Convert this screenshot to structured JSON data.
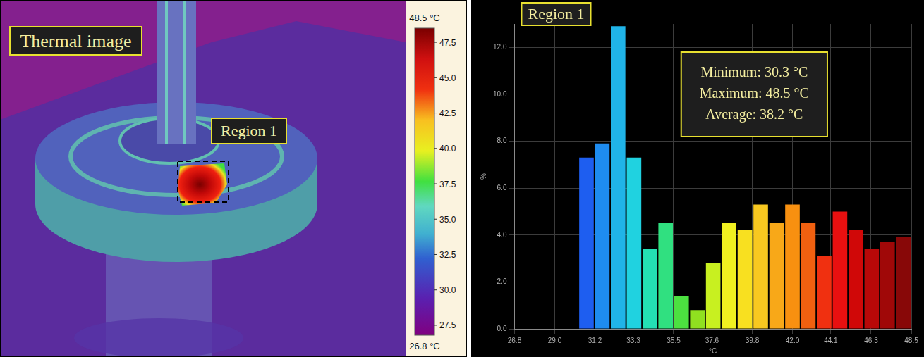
{
  "thermal_image": {
    "label": "Thermal image",
    "region_label": "Region 1",
    "colorbar": {
      "range": [
        26.8,
        48.5
      ],
      "min_label": "26.8 °C",
      "max_label": "48.5 °C",
      "ticks": [
        27.5,
        {
          "value": 30,
          "label": "30.0"
        },
        32.5,
        {
          "value": 35,
          "label": "35.0"
        },
        37.5,
        {
          "value": 40,
          "label": "40.0"
        },
        42.5,
        {
          "value": 45,
          "label": "45.0"
        },
        47.5
      ]
    }
  },
  "chart_data": {
    "type": "histogram",
    "title": "Region 1",
    "annotations": [
      "Minimum: 30.3 °C",
      "Maximum: 48.5 °C",
      "Average: 38.2 °C"
    ],
    "x_label": "°C",
    "y_label": "%",
    "bins": [
      30.3,
      31.17,
      32.03,
      32.9,
      33.77,
      34.63,
      35.5,
      36.37,
      37.23,
      38.1,
      38.97,
      39.83,
      40.7,
      41.57,
      42.43,
      43.3,
      44.17,
      45.03,
      45.9,
      46.77,
      47.63,
      48.5
    ],
    "values": [
      7.3,
      7.9,
      12.9,
      7.3,
      3.4,
      4.5,
      1.4,
      0.8,
      2.8,
      4.5,
      4.2,
      5.3,
      4.5,
      5.3,
      4.5,
      3.1,
      5.0,
      4.2,
      3.4,
      3.7,
      3.9
    ],
    "colors": [
      "#1e5ef0",
      "#1e8cf0",
      "#20b4e8",
      "#20d2e0",
      "#24e0b4",
      "#30e080",
      "#4ce040",
      "#90e020",
      "#c8f020",
      "#f0f020",
      "#f8e020",
      "#f8c820",
      "#f8a818",
      "#f89010",
      "#f06010",
      "#f03010",
      "#e81010",
      "#d00808",
      "#b80808",
      "#a00808",
      "#880808"
    ],
    "xlim": [
      26.8,
      48.5
    ],
    "xticks": [
      26.8,
      {
        "value": 29,
        "label": "29.0"
      },
      31.2,
      33.3,
      35.5,
      37.6,
      39.8,
      {
        "value": 42,
        "label": "42.0"
      },
      44.1,
      46.3,
      48.5
    ],
    "ylim": [
      0,
      13
    ],
    "yticks": [
      {
        "value": 0,
        "label": "0.0"
      },
      {
        "value": 2,
        "label": "2.0"
      },
      {
        "value": 4,
        "label": "4.0"
      },
      {
        "value": 6,
        "label": "6.0"
      },
      {
        "value": 8,
        "label": "8.0"
      },
      {
        "value": 10,
        "label": "10.0"
      },
      {
        "value": 12,
        "label": "12.0"
      }
    ],
    "grid": true
  }
}
